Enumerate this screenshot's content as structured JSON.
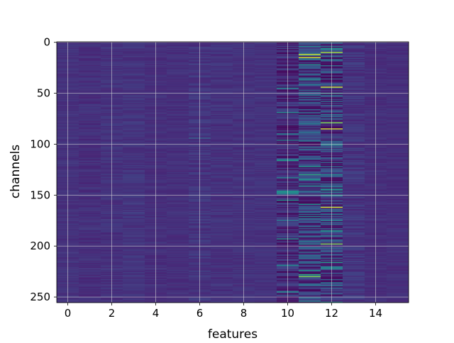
{
  "chart_data": {
    "type": "heatmap",
    "xlabel": "features",
    "ylabel": "channels",
    "xlim": [
      -0.5,
      15.5
    ],
    "ylim": [
      255.5,
      -0.5
    ],
    "x_ticks": [
      0,
      2,
      4,
      6,
      8,
      10,
      12,
      14
    ],
    "y_ticks": [
      0,
      50,
      100,
      150,
      200,
      250
    ],
    "n_features": 16,
    "n_channels": 256,
    "grid": true,
    "colormap": "viridis",
    "value_range": [
      0,
      1
    ],
    "baseline_level": 0.18,
    "feature_profile": [
      {
        "feature": 0,
        "mean": 0.18,
        "spread": 0.03
      },
      {
        "feature": 1,
        "mean": 0.17,
        "spread": 0.04
      },
      {
        "feature": 2,
        "mean": 0.18,
        "spread": 0.04
      },
      {
        "feature": 3,
        "mean": 0.19,
        "spread": 0.04
      },
      {
        "feature": 4,
        "mean": 0.17,
        "spread": 0.03
      },
      {
        "feature": 5,
        "mean": 0.17,
        "spread": 0.03
      },
      {
        "feature": 6,
        "mean": 0.19,
        "spread": 0.05
      },
      {
        "feature": 7,
        "mean": 0.18,
        "spread": 0.04
      },
      {
        "feature": 8,
        "mean": 0.18,
        "spread": 0.03
      },
      {
        "feature": 9,
        "mean": 0.18,
        "spread": 0.03
      },
      {
        "feature": 10,
        "mean": 0.16,
        "spread": 0.12
      },
      {
        "feature": 11,
        "mean": 0.24,
        "spread": 0.22
      },
      {
        "feature": 12,
        "mean": 0.24,
        "spread": 0.22
      },
      {
        "feature": 13,
        "mean": 0.19,
        "spread": 0.06
      },
      {
        "feature": 14,
        "mean": 0.17,
        "spread": 0.03
      },
      {
        "feature": 15,
        "mean": 0.17,
        "spread": 0.03
      }
    ],
    "highlights": [
      {
        "feature": 11,
        "channel": 4,
        "value": 0.6
      },
      {
        "feature": 11,
        "channel": 12,
        "value": 0.95
      },
      {
        "feature": 11,
        "channel": 15,
        "value": 0.95
      },
      {
        "feature": 11,
        "channel": 22,
        "value": 0.6
      },
      {
        "feature": 11,
        "channel": 130,
        "value": 0.7
      },
      {
        "feature": 11,
        "channel": 228,
        "value": 0.7
      },
      {
        "feature": 11,
        "channel": 230,
        "value": 0.85
      },
      {
        "feature": 12,
        "channel": 4,
        "value": 0.45
      },
      {
        "feature": 12,
        "channel": 10,
        "value": 0.9
      },
      {
        "feature": 12,
        "channel": 44,
        "value": 0.95
      },
      {
        "feature": 12,
        "channel": 50,
        "value": 0.6
      },
      {
        "feature": 12,
        "channel": 79,
        "value": 0.85
      },
      {
        "feature": 12,
        "channel": 85,
        "value": 0.95
      },
      {
        "feature": 12,
        "channel": 162,
        "value": 0.95
      },
      {
        "feature": 12,
        "channel": 198,
        "value": 0.85
      },
      {
        "feature": 6,
        "channel": 94,
        "value": 0.4
      }
    ]
  },
  "colors": {
    "background": "#ffffff",
    "grid": "#d9d9d9",
    "axis": "#000000"
  }
}
